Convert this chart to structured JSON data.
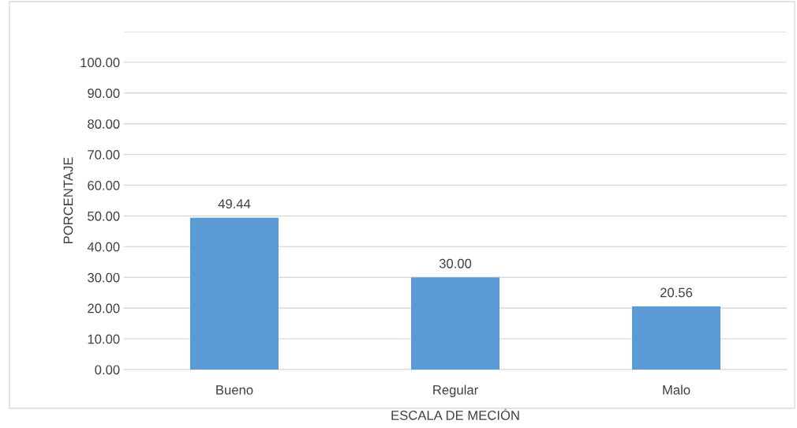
{
  "chart_data": {
    "type": "bar",
    "xlabel": "ESCALA DE MECIÓN",
    "ylabel": "PORCENTAJE",
    "categories": [
      "Bueno",
      "Regular",
      "Malo"
    ],
    "values": [
      49.44,
      30.0,
      20.56
    ],
    "color": "#5b9bd5",
    "data_labels": true,
    "value_labels": [
      "49.44",
      "30.00",
      "20.56"
    ],
    "ylim": [
      0,
      110
    ],
    "yticks": [
      {
        "value": 0,
        "label": "0.00"
      },
      {
        "value": 10,
        "label": "10.00"
      },
      {
        "value": 20,
        "label": "20.00"
      },
      {
        "value": 30,
        "label": "30.00"
      },
      {
        "value": 40,
        "label": "40.00"
      },
      {
        "value": 50,
        "label": "50.00"
      },
      {
        "value": 60,
        "label": "60.00"
      },
      {
        "value": 70,
        "label": "70.00"
      },
      {
        "value": 80,
        "label": "80.00"
      },
      {
        "value": 90,
        "label": "90.00"
      },
      {
        "value": 100,
        "label": "100.00"
      },
      {
        "value": 110,
        "label": null
      }
    ],
    "grid": "y",
    "legend": false
  }
}
